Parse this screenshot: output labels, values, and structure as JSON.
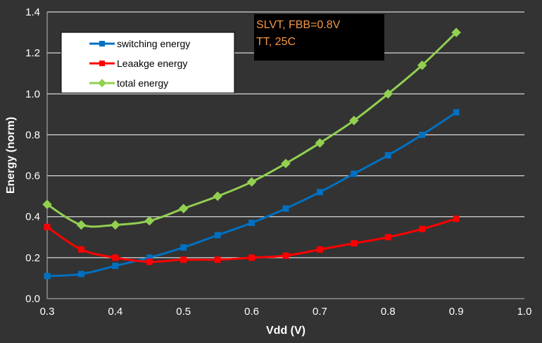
{
  "chart_data": {
    "type": "line",
    "title": "",
    "xlabel": "Vdd (V)",
    "ylabel": "Energy (norm)",
    "xlim": [
      0.3,
      1.0
    ],
    "ylim": [
      0.0,
      1.4
    ],
    "x_ticks": [
      "0.3",
      "0.4",
      "0.5",
      "0.6",
      "0.7",
      "0.8",
      "0.9",
      "1.0"
    ],
    "y_ticks": [
      "0.0",
      "0.2",
      "0.4",
      "0.6",
      "0.8",
      "1.0",
      "1.2",
      "1.4"
    ],
    "grid": "horizontal",
    "legend_position": "top-left",
    "annotation": [
      "SLVT, FBB=0.8V",
      "TT, 25C"
    ],
    "x": [
      0.3,
      0.35,
      0.4,
      0.45,
      0.5,
      0.55,
      0.6,
      0.65,
      0.7,
      0.75,
      0.8,
      0.85,
      0.9
    ],
    "series": [
      {
        "name": "switching energy",
        "marker": "square",
        "color": "#0070C0",
        "values": [
          0.11,
          0.12,
          0.16,
          0.2,
          0.25,
          0.31,
          0.37,
          0.44,
          0.52,
          0.61,
          0.7,
          0.8,
          0.91
        ]
      },
      {
        "name": "Leaakge energy",
        "marker": "square",
        "color": "#FF0000",
        "values": [
          0.35,
          0.24,
          0.2,
          0.18,
          0.19,
          0.19,
          0.2,
          0.21,
          0.24,
          0.27,
          0.3,
          0.34,
          0.39
        ]
      },
      {
        "name": "total energy",
        "marker": "diamond",
        "color": "#92D050",
        "values": [
          0.46,
          0.36,
          0.36,
          0.38,
          0.44,
          0.5,
          0.57,
          0.66,
          0.76,
          0.87,
          1.0,
          1.14,
          1.3
        ]
      }
    ]
  },
  "colors": {
    "background": "#333333",
    "annotation_bg": "#000000",
    "annotation_text": "#F79646",
    "legend_bg": "#FFFFFF",
    "grid": "#FFFFFF"
  }
}
